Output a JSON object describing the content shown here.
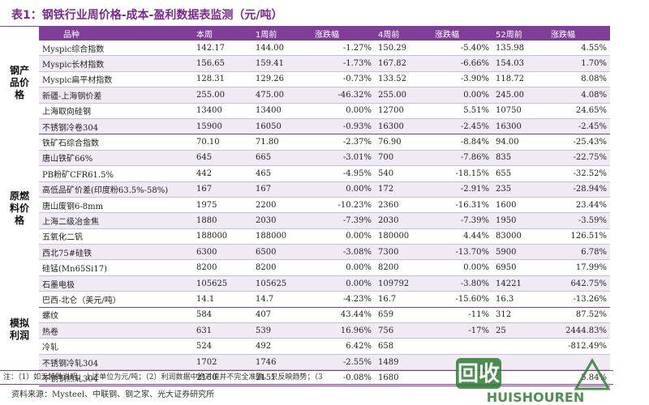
{
  "title": "表1：钢铁行业周价格-成本-盈利数据表监测（元/吨）",
  "headers": [
    "品种",
    "本周",
    "1周前",
    "涨跌幅",
    "4周前",
    "涨跌幅",
    "52周前",
    "涨跌幅"
  ],
  "groups": [
    {
      "name": "钢产品价格",
      "rows": [
        [
          "Myspic综合指数",
          "142.17",
          "144.00",
          "-1.27%",
          "150.29",
          "-5.40%",
          "135.98",
          "4.55%"
        ],
        [
          "Myspic长材指数",
          "156.65",
          "159.41",
          "-1.73%",
          "167.82",
          "-6.66%",
          "154.03",
          "1.70%"
        ],
        [
          "Myspic扁平材指数",
          "128.31",
          "129.26",
          "-0.73%",
          "133.52",
          "-3.90%",
          "118.72",
          "8.08%"
        ],
        [
          "新疆-上海钢价差",
          "255.00",
          "475.00",
          "-46.32%",
          "255.00",
          "0.00%",
          "245.00",
          "4.08%"
        ],
        [
          "上海取向硅钢",
          "13400",
          "13400",
          "0.00%",
          "12700",
          "5.51%",
          "10750",
          "24.65%"
        ],
        [
          "不锈钢冷卷304",
          "15900",
          "16050",
          "-0.93%",
          "16300",
          "-2.45%",
          "16300",
          "-2.45%"
        ]
      ]
    },
    {
      "name": "原燃料价格",
      "rows": [
        [
          "铁矿石综合指数",
          "70.10",
          "71.80",
          "-2.37%",
          "76.90",
          "-8.84%",
          "94.00",
          "-25.43%"
        ],
        [
          "唐山铁矿66%",
          "645",
          "665",
          "-3.01%",
          "700",
          "-7.86%",
          "835",
          "-22.75%"
        ],
        [
          "PB粉矿CFR61.5%",
          "442",
          "465",
          "-4.95%",
          "540",
          "-18.15%",
          "655",
          "-32.52%"
        ],
        [
          "高低品矿价差(印度粉63.5%-58%)",
          "167",
          "167",
          "0.00%",
          "172",
          "-2.91%",
          "235",
          "-28.94%"
        ],
        [
          "唐山废钢6-8mm",
          "1975",
          "2200",
          "-10.23%",
          "2360",
          "-16.31%",
          "1600",
          "23.44%"
        ],
        [
          "上海二级冶金焦",
          "1880",
          "2030",
          "-7.39%",
          "2030",
          "-7.39%",
          "1950",
          "-3.59%"
        ],
        [
          "五氧化二钒",
          "188000",
          "188000",
          "0.00%",
          "180000",
          "4.44%",
          "83000",
          "126.51%"
        ],
        [
          "西北75#硅铁",
          "6300",
          "6500",
          "-3.08%",
          "7300",
          "-13.70%",
          "5900",
          "6.78%"
        ],
        [
          "硅锰(Mn65Si17)",
          "8200",
          "8200",
          "0.00%",
          "8200",
          "0.00%",
          "6950",
          "17.99%"
        ],
        [
          "石墨电极",
          "105625",
          "105625",
          "0.00%",
          "109792",
          "-3.80%",
          "14221",
          "642.75%"
        ],
        [
          "巴西-北仑（美元/吨）",
          "14.1",
          "14.7",
          "-4.23%",
          "16.7",
          "-15.60%",
          "16.3",
          "-13.26%"
        ]
      ]
    },
    {
      "name": "模拟利润",
      "rows": [
        [
          "螺纹",
          "584",
          "407",
          "43.44%",
          "659",
          "-11%",
          "312",
          "87.52%"
        ],
        [
          "热卷",
          "631",
          "539",
          "16.96%",
          "756",
          "-17%",
          "25",
          "2444.83%"
        ],
        [
          "冷轧",
          "524",
          "492",
          "6.42%",
          "658",
          "",
          "",
          "-812.49%"
        ],
        [
          "不锈钢冷轧304",
          "1702",
          "1746",
          "-2.55%",
          "1489",
          "",
          "",
          ""
        ],
        [
          "不锈钢热轧304",
          "2150",
          "2151",
          "-0.08%",
          "1680",
          "",
          "",
          "5.84%"
        ]
      ]
    }
  ],
  "note": "注：（1）如无特殊说明，上述单位为元/吨；（2）利润数据中绝对值并不完全准确，只反映趋势；（3",
  "source": "资料来源：Mysteel、中联钢、钢之家、光大证券研究所",
  "watermark": {
    "text": "回收",
    "sub": "HUISHOUREN"
  },
  "colors": {
    "header": "#7f3f98",
    "alt_row": "#efeaf4",
    "title": "#7a2a8c"
  }
}
